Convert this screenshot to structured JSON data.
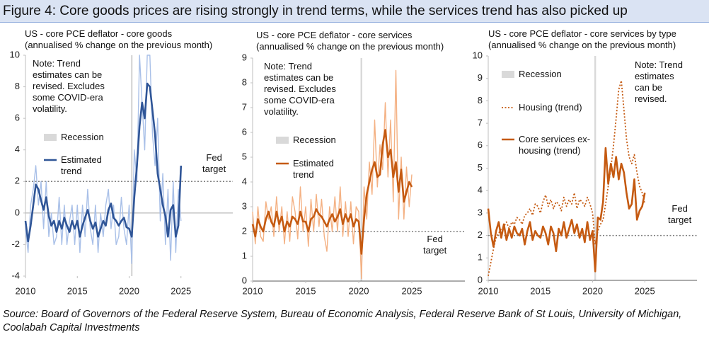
{
  "title": "Figure 4: Core goods prices are rising strongly in trend terms, while the services trend has also picked up",
  "source": "Source: Board of Governors of the Federal Reserve System,  Bureau of Economic Analysis, Federal Reserve Bank of St Louis, University of Michigan, Coolabah Capital Investments",
  "chart_data": [
    {
      "type": "line",
      "subtitle": "US - core PCE deflator - core goods\n(annualised % change on the previous month)",
      "note": "Note: Trend\nestimates can be\nrevised. Excludes\nsome COVID-era\nvolatility.",
      "x": [
        2010,
        2010.25,
        2010.5,
        2010.75,
        2011,
        2011.25,
        2011.5,
        2011.75,
        2012,
        2012.25,
        2012.5,
        2012.75,
        2013,
        2013.25,
        2013.5,
        2013.75,
        2014,
        2014.25,
        2014.5,
        2014.75,
        2015,
        2015.25,
        2015.5,
        2015.75,
        2016,
        2016.25,
        2016.5,
        2016.75,
        2017,
        2017.25,
        2017.5,
        2017.75,
        2018,
        2018.25,
        2018.5,
        2018.75,
        2019,
        2019.25,
        2019.5,
        2019.75,
        2020,
        2020.25,
        2020.5,
        2020.75,
        2021,
        2021.25,
        2021.5,
        2021.75,
        2022,
        2022.25,
        2022.5,
        2022.75,
        2023,
        2023.25,
        2023.5,
        2023.75,
        2024,
        2024.25,
        2024.5,
        2024.75,
        2025
      ],
      "xlim": [
        2010,
        2030
      ],
      "xticks": [
        2010,
        2015,
        2020,
        2025
      ],
      "ylim": [
        -4,
        10
      ],
      "yticks": [
        -4,
        -2,
        0,
        2,
        4,
        6,
        8,
        10
      ],
      "recession": {
        "label": "Recession",
        "range": [
          2020.17,
          2020.33
        ],
        "color": "#d9d9d9"
      },
      "reference_line": {
        "label": "Fed\ntarget",
        "value": 2
      },
      "series": [
        {
          "color": "#a9c0e8",
          "style": "solid",
          "width": 1.4,
          "values": [
            -1,
            -2.5,
            0.5,
            1.5,
            3,
            0.5,
            2,
            -1,
            2,
            -1.5,
            0,
            -2,
            -1.5,
            1,
            -2,
            0.5,
            -2,
            -0.5,
            0.5,
            -2,
            0.5,
            -2.5,
            0.5,
            -1.5,
            1.5,
            -1,
            -2,
            0.5,
            -2.5,
            0,
            -1.5,
            0.5,
            1.5,
            -1,
            0.5,
            -2,
            -1.5,
            1,
            -1,
            -2,
            0.5,
            -3.2,
            4,
            2,
            10,
            7,
            4,
            10,
            10,
            5,
            3,
            6,
            -0.5,
            2.5,
            -2,
            1.5,
            -3,
            2,
            -2.5,
            1.5,
            -0.5
          ]
        },
        {
          "name": "Estimated\ntrend",
          "color": "#2f5597",
          "style": "solid",
          "width": 2.6,
          "values": [
            -0.5,
            -1.8,
            -0.8,
            0.5,
            1.8,
            1.5,
            0.8,
            0.2,
            1,
            -0.2,
            -0.8,
            -0.5,
            -1.2,
            -0.5,
            -1,
            -0.3,
            -0.8,
            -1.2,
            -0.5,
            -1,
            -0.5,
            -1.5,
            -0.8,
            -0.3,
            0.2,
            -0.5,
            -1,
            -0.6,
            -1.5,
            -1,
            -0.5,
            -0.8,
            0.2,
            0.6,
            -0.3,
            -0.5,
            -0.8,
            -0.5,
            -0.3,
            -0.9,
            -1,
            -1.5,
            1,
            3,
            5.5,
            7,
            6,
            8.2,
            8,
            6.5,
            5,
            2.5,
            1.5,
            0.5,
            -0.2,
            -1.5,
            0.2,
            0.5,
            -1.5,
            -0.8,
            3
          ]
        }
      ]
    },
    {
      "type": "line",
      "subtitle": "US - core PCE deflator - core services\n(annualised % change on the previous month)",
      "note": "Note: Trend\nestimates can be\nrevised. Excludes\nsome COVID-era\nvolatility.",
      "x": [
        2010,
        2010.25,
        2010.5,
        2010.75,
        2011,
        2011.25,
        2011.5,
        2011.75,
        2012,
        2012.25,
        2012.5,
        2012.75,
        2013,
        2013.25,
        2013.5,
        2013.75,
        2014,
        2014.25,
        2014.5,
        2014.75,
        2015,
        2015.25,
        2015.5,
        2015.75,
        2016,
        2016.25,
        2016.5,
        2016.75,
        2017,
        2017.25,
        2017.5,
        2017.75,
        2018,
        2018.25,
        2018.5,
        2018.75,
        2019,
        2019.25,
        2019.5,
        2019.75,
        2020,
        2020.25,
        2020.5,
        2020.75,
        2021,
        2021.25,
        2021.5,
        2021.75,
        2022,
        2022.25,
        2022.5,
        2022.75,
        2023,
        2023.25,
        2023.5,
        2023.75,
        2024,
        2024.25,
        2024.5,
        2024.75,
        2025
      ],
      "xlim": [
        2010,
        2030
      ],
      "xticks": [
        2010,
        2015,
        2020,
        2025
      ],
      "ylim": [
        0,
        9
      ],
      "yticks": [
        0,
        1,
        2,
        3,
        4,
        5,
        6,
        7,
        8,
        9
      ],
      "recession": {
        "label": "Recession",
        "range": [
          2020.17,
          2020.33
        ],
        "color": "#d9d9d9"
      },
      "reference_line": {
        "label": "Fed\ntarget",
        "value": 2
      },
      "series": [
        {
          "color": "#f4b183",
          "style": "solid",
          "width": 1.4,
          "values": [
            2.8,
            1.5,
            3,
            1.8,
            1.6,
            3.2,
            2.5,
            3,
            1.8,
            3.4,
            2,
            3,
            1.5,
            2.8,
            1.6,
            3.4,
            2.8,
            1.7,
            3.8,
            2,
            3,
            1.4,
            3.3,
            2,
            3.5,
            2.2,
            3.3,
            1.8,
            1.2,
            3,
            2,
            3.4,
            2,
            3.8,
            1.8,
            3.2,
            1.8,
            3.2,
            1.5,
            3,
            2.8,
            0.1,
            3.8,
            2.5,
            4.8,
            3.5,
            6.5,
            3.8,
            5.5,
            4.5,
            7.2,
            4.2,
            6.5,
            3.2,
            8.5,
            2.5,
            5,
            2.5,
            4.6,
            3,
            4.3
          ]
        },
        {
          "name": "Estimated\ntrend",
          "color": "#c55a11",
          "style": "solid",
          "width": 2.6,
          "values": [
            2.3,
            1.8,
            2.5,
            2.2,
            2,
            2.5,
            2.8,
            2.4,
            2.2,
            2.8,
            2.3,
            2.6,
            2,
            2.4,
            2.2,
            2.6,
            2.5,
            2.3,
            2.8,
            2.4,
            2.4,
            2,
            2.5,
            2.6,
            2.9,
            2.7,
            2.6,
            2.4,
            2.2,
            2.5,
            2.7,
            2.4,
            2.6,
            2.9,
            2.3,
            2.7,
            2.4,
            2.7,
            2.2,
            2.5,
            2.4,
            1.1,
            2.5,
            3.5,
            4,
            4.5,
            4.8,
            4.2,
            4.3,
            5.5,
            6.1,
            5,
            5.3,
            4.2,
            4.8,
            3.6,
            4.5,
            3.2,
            3.6,
            4,
            3.8
          ]
        }
      ]
    },
    {
      "type": "line",
      "subtitle": "US - core PCE deflator - core services by type\n(annualised % change on the previous month)",
      "note": "Note: Trend\nestimates\ncan be\nrevised.",
      "x": [
        2010,
        2010.25,
        2010.5,
        2010.75,
        2011,
        2011.25,
        2011.5,
        2011.75,
        2012,
        2012.25,
        2012.5,
        2012.75,
        2013,
        2013.25,
        2013.5,
        2013.75,
        2014,
        2014.25,
        2014.5,
        2014.75,
        2015,
        2015.25,
        2015.5,
        2015.75,
        2016,
        2016.25,
        2016.5,
        2016.75,
        2017,
        2017.25,
        2017.5,
        2017.75,
        2018,
        2018.25,
        2018.5,
        2018.75,
        2019,
        2019.25,
        2019.5,
        2019.75,
        2020,
        2020.25,
        2020.5,
        2020.75,
        2021,
        2021.25,
        2021.5,
        2021.75,
        2022,
        2022.25,
        2022.5,
        2022.75,
        2023,
        2023.25,
        2023.5,
        2023.75,
        2024,
        2024.25,
        2024.5,
        2024.75,
        2025
      ],
      "xlim": [
        2010,
        2030
      ],
      "xticks": [
        2010,
        2015,
        2020,
        2025
      ],
      "ylim": [
        0,
        10
      ],
      "yticks": [
        0,
        1,
        2,
        3,
        4,
        5,
        6,
        7,
        8,
        9,
        10
      ],
      "recession": {
        "label": "Recession",
        "range": [
          2020.17,
          2020.33
        ],
        "color": "#d9d9d9"
      },
      "reference_line": {
        "label": "Fed\ntarget",
        "value": 2
      },
      "series": [
        {
          "name": "Housing (trend)",
          "color": "#c55a11",
          "style": "dotted",
          "width": 1.8,
          "values": [
            0.2,
            0.8,
            1.4,
            1.9,
            2.1,
            2.3,
            2.4,
            2.6,
            2.3,
            2.6,
            2.5,
            2.8,
            2.7,
            2.5,
            2.9,
            3,
            3.2,
            2.9,
            3.4,
            3.3,
            3,
            3.5,
            3.8,
            3.3,
            3.6,
            3.2,
            3.5,
            3.4,
            3.1,
            3.7,
            3.3,
            3.6,
            3.4,
            3.9,
            3.2,
            3.6,
            3.5,
            3.3,
            3.7,
            3.4,
            3,
            1.6,
            2.2,
            2.5,
            2.7,
            3.4,
            4.2,
            5,
            6,
            7.2,
            8.5,
            8.9,
            7.6,
            6.3,
            5.5,
            5.2,
            5.6,
            4.8,
            4.2,
            3.9,
            3.4
          ]
        },
        {
          "name": "Core services ex-\nhousing (trend)",
          "color": "#c55a11",
          "style": "solid",
          "width": 2.6,
          "values": [
            3.2,
            2.1,
            1.5,
            2.2,
            2.6,
            1.9,
            2.5,
            1.8,
            2.3,
            1.9,
            2.4,
            2.1,
            2,
            2.3,
            1.6,
            2.2,
            2.6,
            1.8,
            2.2,
            2,
            1.9,
            2.4,
            2.1,
            1.6,
            2.4,
            2.1,
            1.3,
            2.3,
            2,
            2.6,
            1.9,
            2.3,
            2.7,
            2.1,
            2.5,
            1.9,
            2.3,
            1.7,
            2.6,
            1.8,
            2.2,
            0.4,
            2.8,
            2.7,
            3.5,
            5.9,
            4.3,
            5.2,
            4.6,
            5.5,
            4.5,
            5.2,
            4.8,
            3.9,
            3.2,
            3.4,
            4.5,
            2.7,
            3.1,
            3.3,
            3.9
          ]
        }
      ]
    }
  ]
}
